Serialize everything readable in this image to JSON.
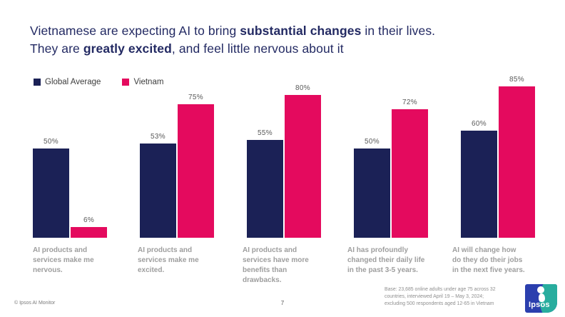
{
  "title": {
    "part1": "Vietnamese are expecting AI to bring ",
    "bold1": "substantial changes",
    "part2": " in their lives. They are ",
    "bold2": "greatly excited",
    "part3": ", and feel little nervous about it"
  },
  "chart_data": {
    "type": "bar",
    "categories": [
      "AI products and\nservices make me\nnervous.",
      "AI products and\nservices make me\nexcited.",
      "AI products and\nservices have more\nbenefits than\ndrawbacks.",
      "AI has profoundly\nchanged their daily life\nin the past 3-5 years.",
      "AI will change how\ndo they do their jobs\nin the next five years."
    ],
    "series": [
      {
        "name": "Global Average",
        "color": "#1b2156",
        "values": [
          50,
          53,
          55,
          50,
          60
        ]
      },
      {
        "name": "Vietnam",
        "color": "#e40a5e",
        "values": [
          6,
          75,
          80,
          72,
          85
        ]
      }
    ],
    "value_suffix": "%",
    "ylim": [
      0,
      100
    ],
    "grid": false,
    "legend_position": "top-left",
    "title": "Vietnamese are expecting AI to bring substantial changes in their lives. They are greatly excited, and feel little nervous about it"
  },
  "footer": {
    "copyright": "© Ipsos AI Monitor",
    "page_number": "7",
    "base_note_lines": [
      "Base: 23,685 online adults under age 75 across 32",
      "countries, interviewed April 19 – May 3, 2024;",
      "excluding 500 respondents aged 12-65 in Vietnam"
    ],
    "logo_text": "Ipsos"
  }
}
